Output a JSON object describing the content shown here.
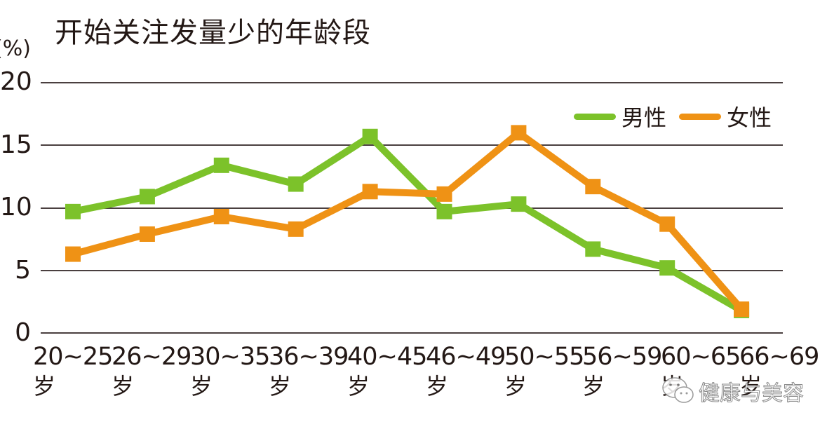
{
  "title": "开始关注发量少的年龄段",
  "unit_label": "(%)",
  "y_ticks": [
    "20",
    "15",
    "10",
    "5",
    "0"
  ],
  "legend": [
    {
      "label": "男性",
      "color": "#7cc22a"
    },
    {
      "label": "女性",
      "color": "#ef9215"
    }
  ],
  "x_labels": [
    {
      "range": "20~25",
      "suffix": "岁"
    },
    {
      "range": "26~29",
      "suffix": "岁"
    },
    {
      "range": "30~35",
      "suffix": "岁"
    },
    {
      "range": "36~39",
      "suffix": "岁"
    },
    {
      "range": "40~45",
      "suffix": "岁"
    },
    {
      "range": "46~49",
      "suffix": "岁"
    },
    {
      "range": "50~55",
      "suffix": "岁"
    },
    {
      "range": "56~59",
      "suffix": "岁"
    },
    {
      "range": "60~65",
      "suffix": "岁"
    },
    {
      "range": "66~69",
      "suffix": "岁"
    }
  ],
  "watermark": {
    "icon": "wechat-icon",
    "text": "健康与美容"
  },
  "chart_data": {
    "type": "line",
    "title": "开始关注发量少的年龄段",
    "xlabel": "",
    "ylabel": "(%)",
    "ylim": [
      0,
      20
    ],
    "yticks": [
      0,
      5,
      10,
      15,
      20
    ],
    "grid": true,
    "legend_position": "top-right",
    "categories": [
      "20~25岁",
      "26~29岁",
      "30~35岁",
      "36~39岁",
      "40~45岁",
      "46~49岁",
      "50~55岁",
      "56~59岁",
      "60~65岁",
      "66~69岁"
    ],
    "series": [
      {
        "name": "男性",
        "color": "#7cc22a",
        "marker": "square",
        "values": [
          9.7,
          10.9,
          13.4,
          11.9,
          15.7,
          9.7,
          10.3,
          6.7,
          5.2,
          1.8
        ]
      },
      {
        "name": "女性",
        "color": "#ef9215",
        "marker": "square",
        "values": [
          6.3,
          7.9,
          9.3,
          8.3,
          11.3,
          11.1,
          16.0,
          11.7,
          8.7,
          1.9
        ]
      }
    ]
  }
}
